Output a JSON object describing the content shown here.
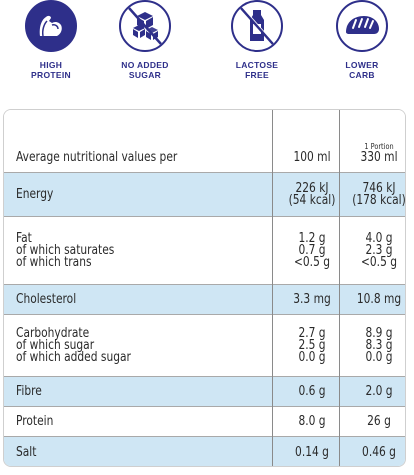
{
  "badges": [
    {
      "name": "high-protein",
      "icon": "flexed-arm-icon",
      "line1": "HIGH",
      "line2": "PROTEIN"
    },
    {
      "name": "no-added-sugar",
      "icon": "sugar-cubes-crossed-icon",
      "line1": "NO ADDED",
      "line2": "SUGAR"
    },
    {
      "name": "lactose-free",
      "icon": "milk-bottle-crossed-icon",
      "line1": "LACTOSE",
      "line2": "FREE"
    },
    {
      "name": "lower-carb",
      "icon": "bread-icon",
      "line1": "LOWER",
      "line2": "CARB"
    }
  ],
  "colors": {
    "brand": "#2e2f8a",
    "row_blue": "#cfe6f4",
    "row_white": "#ffffff"
  },
  "table": {
    "header": {
      "label": "Average nutritional values per",
      "col1": "100 ml",
      "col2_small": "1 Portion",
      "col2": "330 ml"
    },
    "rows": [
      {
        "name": "energy",
        "shade": "blue",
        "labels": [
          "Energy"
        ],
        "v1": [
          "226 kJ",
          "(54 kcal)"
        ],
        "v2": [
          "746 kJ",
          "(178 kcal)"
        ]
      },
      {
        "name": "fat",
        "shade": "white",
        "labels": [
          "Fat",
          "of which saturates",
          "of which trans"
        ],
        "v1": [
          "1.2 g",
          "0.7 g",
          "<0.5 g"
        ],
        "v2": [
          "4.0 g",
          "2.3 g",
          "<0.5 g"
        ]
      },
      {
        "name": "cholesterol",
        "shade": "blue",
        "labels": [
          "Cholesterol"
        ],
        "v1": [
          "3.3 mg"
        ],
        "v2": [
          "10.8 mg"
        ]
      },
      {
        "name": "carbohydrate",
        "shade": "white",
        "labels": [
          "Carbohydrate",
          "of which sugar",
          "of which added sugar"
        ],
        "v1": [
          "2.7 g",
          "2.5 g",
          "0.0 g"
        ],
        "v2": [
          "8.9 g",
          "8.3 g",
          "0.0 g"
        ]
      },
      {
        "name": "fibre",
        "shade": "blue",
        "labels": [
          "Fibre"
        ],
        "v1": [
          "0.6 g"
        ],
        "v2": [
          "2.0 g"
        ]
      },
      {
        "name": "protein",
        "shade": "white",
        "labels": [
          "Protein"
        ],
        "v1": [
          "8.0 g"
        ],
        "v2": [
          "26 g"
        ]
      },
      {
        "name": "salt",
        "shade": "blue",
        "labels": [
          "Salt"
        ],
        "v1": [
          "0.14 g"
        ],
        "v2": [
          "0.46 g"
        ]
      }
    ]
  }
}
